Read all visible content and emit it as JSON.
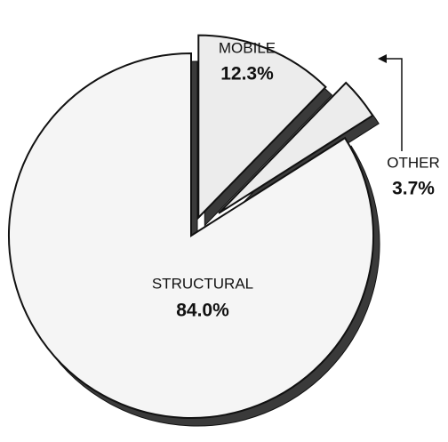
{
  "chart_data": {
    "type": "pie",
    "categories": [
      "MOBILE",
      "OTHER",
      "STRUCTURAL"
    ],
    "values": [
      12.3,
      3.7,
      84.0
    ],
    "value_labels": [
      "12.3%",
      "3.7%",
      "84.0%"
    ],
    "colors": [
      "#ececec",
      "#ececec",
      "#f5f5f5"
    ]
  }
}
